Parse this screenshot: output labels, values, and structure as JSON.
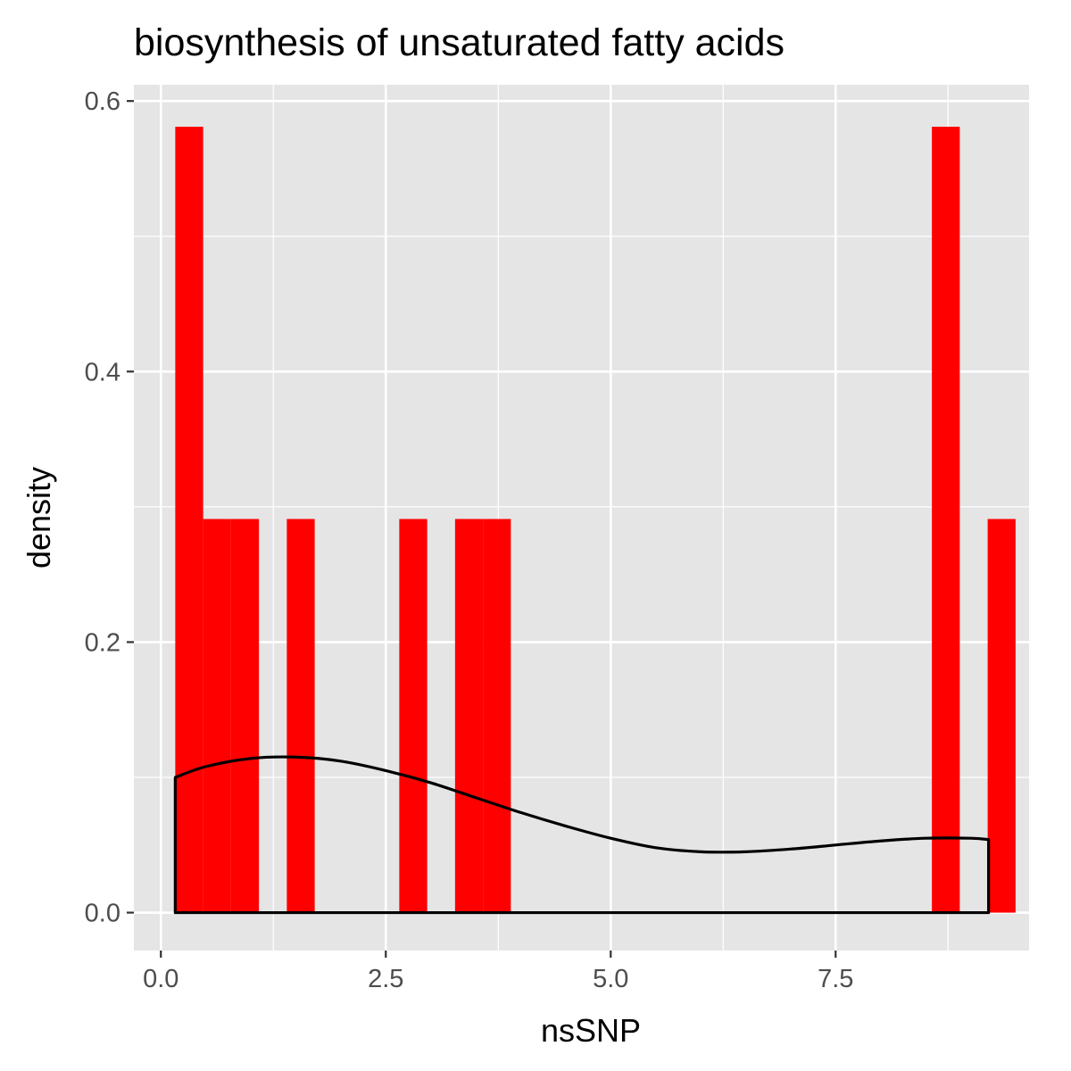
{
  "chart_data": {
    "type": "bar",
    "title": "biosynthesis of unsaturated fatty acids",
    "xlabel": "nsSNP",
    "ylabel": "density",
    "xlim": [
      -0.3,
      9.65
    ],
    "ylim": [
      -0.028,
      0.612
    ],
    "x_ticks": [
      {
        "value": 0.0,
        "label": "0.0"
      },
      {
        "value": 2.5,
        "label": "2.5"
      },
      {
        "value": 5.0,
        "label": "5.0"
      },
      {
        "value": 7.5,
        "label": "7.5"
      }
    ],
    "y_ticks": [
      {
        "value": 0.0,
        "label": "0.0"
      },
      {
        "value": 0.2,
        "label": "0.2"
      },
      {
        "value": 0.4,
        "label": "0.4"
      },
      {
        "value": 0.6,
        "label": "0.6"
      }
    ],
    "x_minor_grid": [
      1.25,
      3.75,
      6.25,
      8.75
    ],
    "y_minor_grid": [
      0.1,
      0.3,
      0.5
    ],
    "grid": true,
    "panel_background": "#e5e5e5",
    "bar_color": "#ff0000",
    "density_line_color": "#000000",
    "bars": [
      {
        "x0": 0.16,
        "x1": 0.47,
        "y": 0.581
      },
      {
        "x0": 0.47,
        "x1": 0.78,
        "y": 0.291
      },
      {
        "x0": 0.78,
        "x1": 1.09,
        "y": 0.291
      },
      {
        "x0": 1.4,
        "x1": 1.71,
        "y": 0.291
      },
      {
        "x0": 2.65,
        "x1": 2.96,
        "y": 0.291
      },
      {
        "x0": 3.27,
        "x1": 3.58,
        "y": 0.291
      },
      {
        "x0": 3.58,
        "x1": 3.89,
        "y": 0.291
      },
      {
        "x0": 8.57,
        "x1": 8.88,
        "y": 0.581
      },
      {
        "x0": 9.19,
        "x1": 9.5,
        "y": 0.291
      }
    ],
    "density": {
      "x": [
        0.16,
        0.5,
        1.0,
        1.5,
        2.0,
        2.5,
        3.0,
        3.5,
        4.0,
        4.5,
        5.0,
        5.5,
        6.0,
        6.5,
        7.0,
        7.5,
        8.0,
        8.5,
        9.0,
        9.2
      ],
      "y": [
        0.1,
        0.108,
        0.114,
        0.115,
        0.112,
        0.105,
        0.096,
        0.085,
        0.074,
        0.064,
        0.055,
        0.048,
        0.045,
        0.045,
        0.047,
        0.05,
        0.053,
        0.055,
        0.055,
        0.054
      ]
    }
  }
}
